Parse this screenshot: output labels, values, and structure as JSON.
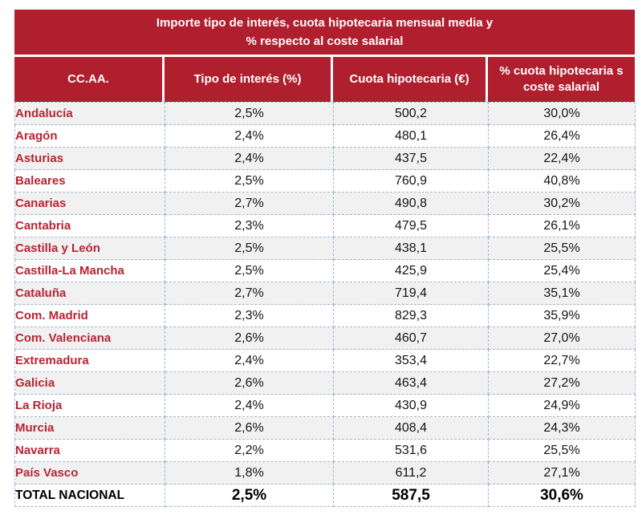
{
  "figure": {
    "title": {
      "line1": "Importe tipo de interés, cuota hipotecaria mensual media y",
      "line2": "% respecto al coste salarial"
    },
    "header": {
      "ccaa": "CC.AA.",
      "interes": "Tipo de interés (%)",
      "cuota": "Cuota hipotecaria (€)",
      "pct_line1": "% cuota hipotecaria s",
      "pct_line2": "coste salarial"
    }
  },
  "colors": {
    "header_red": "#AF1F2E",
    "region_text_red": "#B82433",
    "stripe_gray": "#F1F1F1",
    "dashed_border_blue": "#A0B6CE"
  },
  "chart_data": {
    "type": "table",
    "title": "Importe tipo de interés, cuota hipotecaria mensual media y % respecto al coste salarial",
    "columns": [
      "CC.AA.",
      "Tipo de interés (%)",
      "Cuota hipotecaria (€)",
      "% cuota hipotecaria s coste salarial"
    ],
    "rows": [
      {
        "region": "Andalucía",
        "interes": "2,5%",
        "cuota": "500,2",
        "pct": "30,0%"
      },
      {
        "region": "Aragón",
        "interes": "2,4%",
        "cuota": "480,1",
        "pct": "26,4%"
      },
      {
        "region": "Asturias",
        "interes": "2,4%",
        "cuota": "437,5",
        "pct": "22,4%"
      },
      {
        "region": "Baleares",
        "interes": "2,5%",
        "cuota": "760,9",
        "pct": "40,8%"
      },
      {
        "region": "Canarias",
        "interes": "2,7%",
        "cuota": "490,8",
        "pct": "30,2%"
      },
      {
        "region": "Cantabria",
        "interes": "2,3%",
        "cuota": "479,5",
        "pct": "26,1%"
      },
      {
        "region": "Castilla y León",
        "interes": "2,5%",
        "cuota": "438,1",
        "pct": "25,5%"
      },
      {
        "region": "Castilla-La Mancha",
        "interes": "2,5%",
        "cuota": "425,9",
        "pct": "25,4%"
      },
      {
        "region": "Cataluña",
        "interes": "2,7%",
        "cuota": "719,4",
        "pct": "35,1%"
      },
      {
        "region": "Com. Madrid",
        "interes": "2,3%",
        "cuota": "829,3",
        "pct": "35,9%"
      },
      {
        "region": "Com. Valenciana",
        "interes": "2,6%",
        "cuota": "460,7",
        "pct": "27,0%"
      },
      {
        "region": "Extremadura",
        "interes": "2,4%",
        "cuota": "353,4",
        "pct": "22,7%"
      },
      {
        "region": "Galicia",
        "interes": "2,6%",
        "cuota": "463,4",
        "pct": "27,2%"
      },
      {
        "region": "La Rioja",
        "interes": "2,4%",
        "cuota": "430,9",
        "pct": "24,9%"
      },
      {
        "region": "Murcia",
        "interes": "2,6%",
        "cuota": "408,4",
        "pct": "24,3%"
      },
      {
        "region": "Navarra",
        "interes": "2,2%",
        "cuota": "531,6",
        "pct": "25,5%"
      },
      {
        "region": "País Vasco",
        "interes": "1,8%",
        "cuota": "611,2",
        "pct": "27,1%"
      }
    ],
    "total": {
      "region": "TOTAL NACIONAL",
      "interes": "2,5%",
      "cuota": "587,5",
      "pct": "30,6%"
    }
  }
}
